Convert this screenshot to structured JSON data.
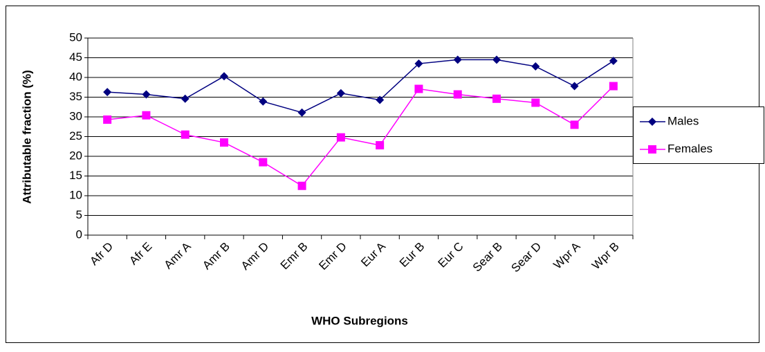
{
  "chart_data": {
    "type": "line",
    "x_label": "WHO Subregions",
    "y_label": "Attributable fraction (%)",
    "categories": [
      "Afr D",
      "Afr E",
      "Amr A",
      "Amr B",
      "Amr D",
      "Emr B",
      "Emr D",
      "Eur A",
      "Eur B",
      "Eur C",
      "Sear B",
      "Sear D",
      "Wpr A",
      "Wpr B"
    ],
    "series": [
      {
        "name": "Males",
        "color": "#000080",
        "marker": "diamond",
        "values": [
          36.3,
          35.7,
          34.6,
          40.3,
          33.9,
          31.1,
          36.0,
          34.3,
          43.5,
          44.5,
          44.5,
          42.8,
          37.8,
          44.2
        ]
      },
      {
        "name": "Females",
        "color": "#ff00ff",
        "marker": "square",
        "values": [
          29.3,
          30.4,
          25.5,
          23.5,
          18.5,
          12.5,
          24.8,
          22.8,
          37.1,
          35.7,
          34.6,
          33.6,
          28.0,
          37.8
        ]
      }
    ],
    "ylim": [
      0,
      50
    ],
    "yticks": [
      0,
      5,
      10,
      15,
      20,
      25,
      30,
      35,
      40,
      45,
      50
    ],
    "grid": true,
    "legend": "right"
  }
}
